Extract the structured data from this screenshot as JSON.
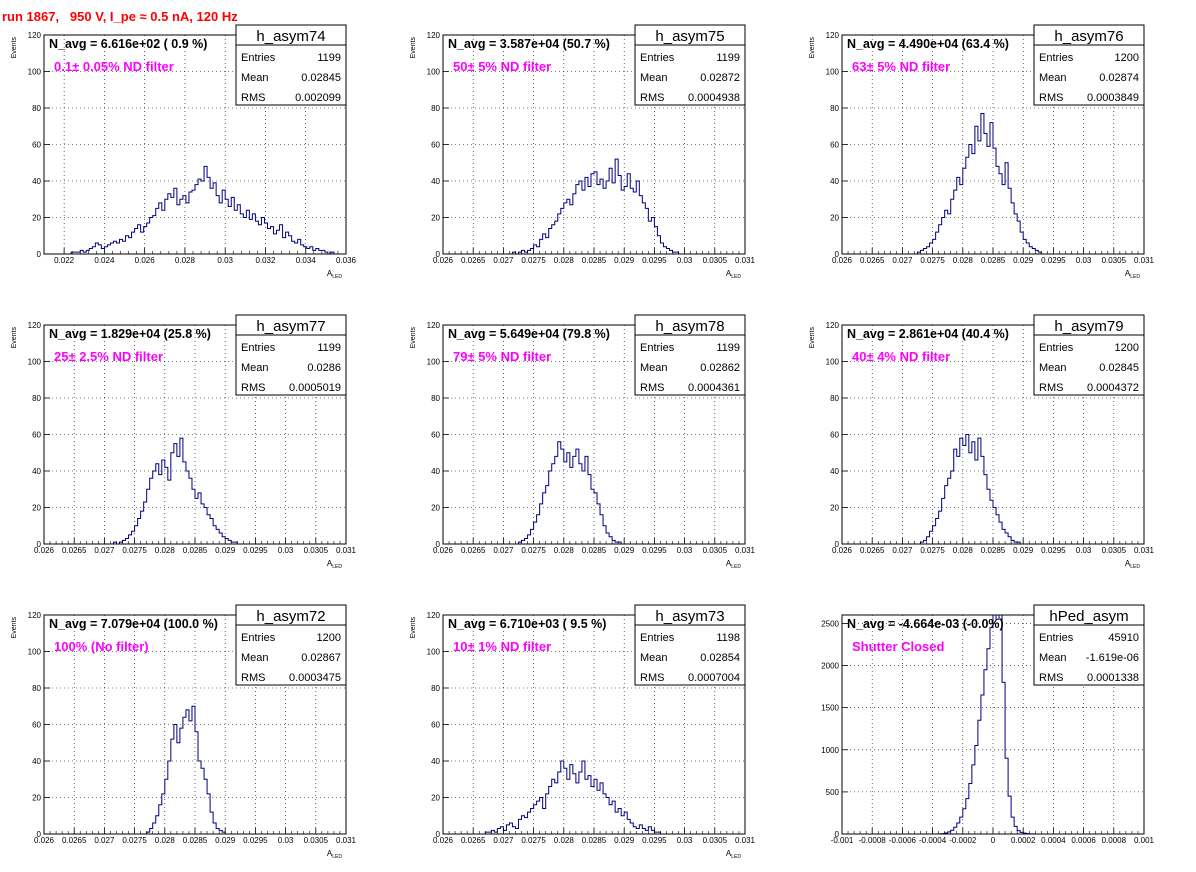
{
  "page": {
    "title": "run 1867,   950 V, I_pe ≈ 0.5 nA, 120 Hz"
  },
  "colors": {
    "histogram": "#000080",
    "annotation": "#ff00ff",
    "title": "#ff0000",
    "grid": "#000000"
  },
  "chart_data": [
    {
      "type": "histogram",
      "name": "h_asym74",
      "stats": {
        "Entries": "1199",
        "Mean": "0.02845",
        "RMS": "0.002099"
      },
      "navg": "N_avg = 6.616e+02 ( 0.9 %)",
      "note": "0.1± 0.05% ND filter",
      "xlabel": "A_LED",
      "ylabel": "Events",
      "xlim": [
        0.021,
        0.036
      ],
      "ylim": [
        0,
        120
      ],
      "xticks": [
        0.022,
        0.024,
        0.026,
        0.028,
        0.03,
        0.032,
        0.034,
        0.036
      ],
      "xtick_labels": [
        "0.022",
        "0.024",
        "0.026",
        "0.028",
        "0.03",
        "0.032",
        "0.034",
        "0.036"
      ],
      "yticks": [
        0,
        20,
        40,
        60,
        80,
        100,
        120
      ],
      "x_start": 0.021,
      "bin_width": 0.00015,
      "counts": [
        0,
        0,
        0,
        0,
        0,
        0,
        0,
        0,
        0,
        1,
        1,
        1,
        2,
        1,
        2,
        3,
        4,
        6,
        5,
        3,
        4,
        5,
        6,
        7,
        6,
        8,
        7,
        10,
        9,
        12,
        14,
        16,
        12,
        15,
        17,
        20,
        21,
        25,
        28,
        24,
        30,
        33,
        31,
        36,
        27,
        30,
        32,
        28,
        34,
        35,
        38,
        41,
        40,
        48,
        42,
        36,
        39,
        32,
        28,
        35,
        30,
        26,
        31,
        24,
        27,
        22,
        20,
        24,
        19,
        22,
        18,
        16,
        20,
        17,
        14,
        15,
        11,
        13,
        16,
        9,
        12,
        10,
        7,
        6,
        8,
        5,
        4,
        3,
        4,
        2,
        3,
        2,
        2,
        1,
        0,
        1,
        0,
        0,
        0,
        0
      ]
    },
    {
      "type": "histogram",
      "name": "h_asym75",
      "stats": {
        "Entries": "1199",
        "Mean": "0.02872",
        "RMS": "0.0004938"
      },
      "navg": "N_avg = 3.587e+04 (50.7 %)",
      "note": "50± 5% ND filter",
      "xlabel": "A_LED",
      "ylabel": "Events",
      "xlim": [
        0.026,
        0.031
      ],
      "ylim": [
        0,
        120
      ],
      "xticks": [
        0.026,
        0.0265,
        0.027,
        0.0275,
        0.028,
        0.0285,
        0.029,
        0.0295,
        0.03,
        0.0305,
        0.031
      ],
      "xtick_labels": [
        "0.026",
        "0.0265",
        "0.027",
        "0.0275",
        "0.028",
        "0.0285",
        "0.029",
        "0.0295",
        "0.03",
        "0.0305",
        "0.031"
      ],
      "yticks": [
        0,
        20,
        40,
        60,
        80,
        100,
        120
      ],
      "x_start": 0.026,
      "bin_width": 5e-05,
      "counts": [
        0,
        0,
        0,
        0,
        0,
        0,
        0,
        0,
        0,
        0,
        0,
        0,
        0,
        0,
        0,
        0,
        0,
        0,
        0,
        0,
        0,
        0,
        0,
        1,
        0,
        1,
        2,
        1,
        2,
        3,
        5,
        4,
        8,
        11,
        9,
        14,
        16,
        18,
        22,
        25,
        28,
        30,
        27,
        33,
        38,
        40,
        35,
        42,
        37,
        44,
        45,
        38,
        41,
        36,
        40,
        47,
        39,
        52,
        43,
        35,
        37,
        44,
        36,
        34,
        40,
        32,
        28,
        25,
        18,
        20,
        15,
        10,
        6,
        4,
        3,
        2,
        1,
        1,
        0,
        0,
        0,
        0,
        0,
        0,
        0,
        0,
        0,
        0,
        0,
        0,
        0,
        0,
        0,
        0,
        0,
        0,
        0,
        0,
        0,
        0
      ]
    },
    {
      "type": "histogram",
      "name": "h_asym76",
      "stats": {
        "Entries": "1200",
        "Mean": "0.02874",
        "RMS": "0.0003849"
      },
      "navg": "N_avg = 4.490e+04 (63.4 %)",
      "note": "63± 5% ND filter",
      "xlabel": "A_LED",
      "ylabel": "Events",
      "xlim": [
        0.026,
        0.031
      ],
      "ylim": [
        0,
        120
      ],
      "xticks": [
        0.026,
        0.0265,
        0.027,
        0.0275,
        0.028,
        0.0285,
        0.029,
        0.0295,
        0.03,
        0.0305,
        0.031
      ],
      "xtick_labels": [
        "0.026",
        "0.0265",
        "0.027",
        "0.0275",
        "0.028",
        "0.0285",
        "0.029",
        "0.0295",
        "0.03",
        "0.0305",
        "0.031"
      ],
      "yticks": [
        0,
        20,
        40,
        60,
        80,
        100,
        120
      ],
      "x_start": 0.026,
      "bin_width": 5e-05,
      "counts": [
        0,
        0,
        0,
        0,
        0,
        0,
        0,
        0,
        0,
        0,
        0,
        0,
        0,
        0,
        0,
        0,
        0,
        0,
        0,
        0,
        0,
        0,
        0,
        0,
        0,
        1,
        2,
        3,
        4,
        6,
        8,
        12,
        16,
        20,
        24,
        22,
        30,
        35,
        42,
        38,
        47,
        53,
        60,
        55,
        70,
        62,
        77,
        66,
        59,
        72,
        58,
        48,
        44,
        38,
        50,
        36,
        28,
        22,
        18,
        12,
        8,
        6,
        4,
        3,
        2,
        1,
        0,
        0,
        0,
        0,
        0,
        0,
        0,
        0,
        0,
        0,
        0,
        0,
        0,
        0,
        0,
        0,
        0,
        0,
        0,
        0,
        0,
        0,
        0,
        0,
        0,
        0,
        0,
        0,
        0,
        0,
        0,
        0,
        0,
        0
      ]
    },
    {
      "type": "histogram",
      "name": "h_asym77",
      "stats": {
        "Entries": "1199",
        "Mean": "0.0286",
        "RMS": "0.0005019"
      },
      "navg": "N_avg = 1.829e+04 (25.8 %)",
      "note": "25± 2.5% ND filter",
      "xlabel": "A_LED",
      "ylabel": "Events",
      "xlim": [
        0.026,
        0.031
      ],
      "ylim": [
        0,
        120
      ],
      "xticks": [
        0.026,
        0.0265,
        0.027,
        0.0275,
        0.028,
        0.0285,
        0.029,
        0.0295,
        0.03,
        0.0305,
        0.031
      ],
      "xtick_labels": [
        "0.026",
        "0.0265",
        "0.027",
        "0.0275",
        "0.028",
        "0.0285",
        "0.029",
        "0.0295",
        "0.03",
        "0.0305",
        "0.031"
      ],
      "yticks": [
        0,
        20,
        40,
        60,
        80,
        100,
        120
      ],
      "x_start": 0.026,
      "bin_width": 5e-05,
      "counts": [
        0,
        0,
        0,
        0,
        0,
        0,
        0,
        0,
        0,
        0,
        0,
        0,
        0,
        0,
        0,
        0,
        0,
        0,
        0,
        0,
        0,
        0,
        0,
        1,
        0,
        1,
        2,
        3,
        5,
        7,
        10,
        14,
        18,
        23,
        30,
        36,
        40,
        44,
        38,
        46,
        42,
        35,
        50,
        55,
        48,
        58,
        45,
        40,
        36,
        30,
        25,
        28,
        22,
        20,
        16,
        14,
        10,
        8,
        6,
        4,
        3,
        2,
        1,
        1,
        0,
        0,
        0,
        0,
        0,
        0,
        0,
        0,
        0,
        0,
        0,
        0,
        0,
        0,
        0,
        0,
        0,
        0,
        0,
        0,
        0,
        0,
        0,
        0,
        0,
        0,
        0,
        0,
        0,
        0,
        0,
        0,
        0,
        0,
        0,
        0
      ]
    },
    {
      "type": "histogram",
      "name": "h_asym78",
      "stats": {
        "Entries": "1199",
        "Mean": "0.02862",
        "RMS": "0.0004361"
      },
      "navg": "N_avg = 5.649e+04 (79.8 %)",
      "note": "79± 5% ND filter",
      "xlabel": "A_LED",
      "ylabel": "Events",
      "xlim": [
        0.026,
        0.031
      ],
      "ylim": [
        0,
        120
      ],
      "xticks": [
        0.026,
        0.0265,
        0.027,
        0.0275,
        0.028,
        0.0285,
        0.029,
        0.0295,
        0.03,
        0.0305,
        0.031
      ],
      "xtick_labels": [
        "0.026",
        "0.0265",
        "0.027",
        "0.0275",
        "0.028",
        "0.0285",
        "0.029",
        "0.0295",
        "0.03",
        "0.0305",
        "0.031"
      ],
      "yticks": [
        0,
        20,
        40,
        60,
        80,
        100,
        120
      ],
      "x_start": 0.026,
      "bin_width": 5e-05,
      "counts": [
        0,
        0,
        0,
        0,
        0,
        0,
        0,
        0,
        0,
        0,
        0,
        0,
        0,
        0,
        0,
        0,
        0,
        0,
        0,
        0,
        0,
        0,
        0,
        0,
        0,
        1,
        2,
        3,
        5,
        8,
        12,
        16,
        22,
        28,
        32,
        40,
        44,
        48,
        56,
        52,
        45,
        50,
        42,
        48,
        52,
        44,
        40,
        48,
        38,
        30,
        28,
        22,
        16,
        10,
        6,
        4,
        2,
        1,
        1,
        0,
        0,
        0,
        0,
        0,
        0,
        0,
        0,
        0,
        0,
        0,
        0,
        0,
        0,
        0,
        0,
        0,
        0,
        0,
        0,
        0,
        0,
        0,
        0,
        0,
        0,
        0,
        0,
        0,
        0,
        0,
        0,
        0,
        0,
        0,
        0,
        0,
        0,
        0,
        0,
        0
      ]
    },
    {
      "type": "histogram",
      "name": "h_asym79",
      "stats": {
        "Entries": "1200",
        "Mean": "0.02845",
        "RMS": "0.0004372"
      },
      "navg": "N_avg = 2.861e+04 (40.4 %)",
      "note": "40± 4% ND filter",
      "xlabel": "A_LED",
      "ylabel": "Events",
      "xlim": [
        0.026,
        0.031
      ],
      "ylim": [
        0,
        120
      ],
      "xticks": [
        0.026,
        0.0265,
        0.027,
        0.0275,
        0.028,
        0.0285,
        0.029,
        0.0295,
        0.03,
        0.0305,
        0.031
      ],
      "xtick_labels": [
        "0.026",
        "0.0265",
        "0.027",
        "0.0275",
        "0.028",
        "0.0285",
        "0.029",
        "0.0295",
        "0.03",
        "0.0305",
        "0.031"
      ],
      "yticks": [
        0,
        20,
        40,
        60,
        80,
        100,
        120
      ],
      "x_start": 0.026,
      "bin_width": 5e-05,
      "counts": [
        0,
        0,
        0,
        0,
        0,
        0,
        0,
        0,
        0,
        0,
        0,
        0,
        0,
        0,
        0,
        0,
        0,
        0,
        0,
        0,
        0,
        0,
        0,
        0,
        0,
        0,
        1,
        2,
        4,
        7,
        10,
        14,
        18,
        25,
        32,
        36,
        40,
        52,
        48,
        58,
        54,
        60,
        50,
        56,
        46,
        58,
        48,
        38,
        30,
        24,
        20,
        16,
        12,
        8,
        6,
        4,
        2,
        1,
        1,
        0,
        0,
        0,
        0,
        0,
        0,
        0,
        0,
        0,
        0,
        0,
        0,
        0,
        0,
        0,
        0,
        0,
        0,
        0,
        0,
        0,
        0,
        0,
        0,
        0,
        0,
        0,
        0,
        0,
        0,
        0,
        0,
        0,
        0,
        0,
        0,
        0,
        0,
        0,
        0,
        0
      ]
    },
    {
      "type": "histogram",
      "name": "h_asym72",
      "stats": {
        "Entries": "1200",
        "Mean": "0.02867",
        "RMS": "0.0003475"
      },
      "navg": "N_avg = 7.079e+04 (100.0 %)",
      "note": "100% (No filter)",
      "xlabel": "A_LED",
      "ylabel": "Events",
      "xlim": [
        0.026,
        0.031
      ],
      "ylim": [
        0,
        120
      ],
      "xticks": [
        0.026,
        0.0265,
        0.027,
        0.0275,
        0.028,
        0.0285,
        0.029,
        0.0295,
        0.03,
        0.0305,
        0.031
      ],
      "xtick_labels": [
        "0.026",
        "0.0265",
        "0.027",
        "0.0275",
        "0.028",
        "0.0285",
        "0.029",
        "0.0295",
        "0.03",
        "0.0305",
        "0.031"
      ],
      "yticks": [
        0,
        20,
        40,
        60,
        80,
        100,
        120
      ],
      "x_start": 0.026,
      "bin_width": 5e-05,
      "counts": [
        0,
        0,
        0,
        0,
        0,
        0,
        0,
        0,
        0,
        0,
        0,
        0,
        0,
        0,
        0,
        0,
        0,
        0,
        0,
        0,
        0,
        0,
        0,
        0,
        0,
        0,
        0,
        0,
        0,
        0,
        0,
        0,
        0,
        0,
        1,
        3,
        6,
        10,
        16,
        22,
        30,
        40,
        52,
        60,
        50,
        58,
        64,
        68,
        62,
        70,
        56,
        40,
        36,
        30,
        22,
        12,
        6,
        3,
        2,
        1,
        0,
        0,
        0,
        0,
        0,
        0,
        0,
        0,
        0,
        0,
        0,
        0,
        0,
        0,
        0,
        0,
        0,
        0,
        0,
        0,
        0,
        0,
        0,
        0,
        0,
        0,
        0,
        0,
        0,
        0,
        0,
        0,
        0,
        0,
        0,
        0,
        0,
        0,
        0,
        0
      ]
    },
    {
      "type": "histogram",
      "name": "h_asym73",
      "stats": {
        "Entries": "1198",
        "Mean": "0.02854",
        "RMS": "0.0007004"
      },
      "navg": "N_avg = 6.710e+03 ( 9.5 %)",
      "note": "10± 1% ND filter",
      "xlabel": "A_LED",
      "ylabel": "Events",
      "xlim": [
        0.026,
        0.031
      ],
      "ylim": [
        0,
        120
      ],
      "xticks": [
        0.026,
        0.0265,
        0.027,
        0.0275,
        0.028,
        0.0285,
        0.029,
        0.0295,
        0.03,
        0.0305,
        0.031
      ],
      "xtick_labels": [
        "0.026",
        "0.0265",
        "0.027",
        "0.0275",
        "0.028",
        "0.0285",
        "0.029",
        "0.0295",
        "0.03",
        "0.0305",
        "0.031"
      ],
      "yticks": [
        0,
        20,
        40,
        60,
        80,
        100,
        120
      ],
      "x_start": 0.026,
      "bin_width": 5e-05,
      "counts": [
        0,
        0,
        0,
        0,
        0,
        0,
        0,
        0,
        0,
        0,
        0,
        0,
        0,
        0,
        1,
        1,
        2,
        1,
        3,
        4,
        2,
        5,
        6,
        4,
        3,
        8,
        10,
        9,
        12,
        14,
        16,
        18,
        20,
        14,
        22,
        26,
        30,
        28,
        34,
        40,
        36,
        30,
        38,
        33,
        28,
        34,
        40,
        30,
        32,
        26,
        30,
        24,
        28,
        22,
        20,
        16,
        18,
        12,
        14,
        10,
        12,
        8,
        6,
        4,
        3,
        5,
        3,
        2,
        4,
        2,
        1,
        1,
        0,
        0,
        0,
        0,
        0,
        0,
        0,
        0,
        0,
        0,
        0,
        0,
        0,
        0,
        0,
        0,
        0,
        0,
        0,
        0,
        0,
        0,
        0,
        0,
        0,
        0,
        0,
        0
      ]
    },
    {
      "type": "histogram",
      "name": "hPed_asym",
      "stats": {
        "Entries": "45910",
        "Mean": "-1.619e-06",
        "RMS": "0.0001338"
      },
      "navg": "N_avg = -4.664e-03 (-0.0%)",
      "note": "Shutter Closed",
      "xlabel": "",
      "ylabel": "",
      "xlim": [
        -0.001,
        0.001
      ],
      "ylim": [
        0,
        2600
      ],
      "xticks": [
        -0.001,
        -0.0008,
        -0.0006,
        -0.0004,
        -0.0002,
        0,
        0.0002,
        0.0004,
        0.0006,
        0.0008,
        0.001
      ],
      "xtick_labels": [
        "-0.001",
        "-0.0008",
        "-0.0006",
        "-0.0004",
        "-0.0002",
        "0",
        "0.0002",
        "0.0004",
        "0.0006",
        "0.0008",
        "0.001"
      ],
      "yticks": [
        0,
        500,
        1000,
        1500,
        2000,
        2500
      ],
      "x_start": -0.001,
      "bin_width": 2e-05,
      "counts": [
        0,
        0,
        0,
        0,
        0,
        0,
        0,
        0,
        0,
        0,
        0,
        0,
        0,
        0,
        0,
        0,
        0,
        0,
        0,
        0,
        0,
        0,
        0,
        0,
        0,
        0,
        0,
        0,
        0,
        0,
        0,
        0,
        2,
        5,
        12,
        25,
        45,
        80,
        130,
        200,
        300,
        420,
        600,
        820,
        1050,
        1350,
        1650,
        1950,
        2200,
        2450,
        2600,
        2550,
        2650,
        1800,
        900,
        450,
        200,
        90,
        40,
        20,
        10,
        4,
        2,
        1,
        0,
        0,
        0,
        0,
        0,
        0,
        0,
        0,
        0,
        0,
        0,
        0,
        0,
        0,
        0,
        0,
        0,
        0,
        0,
        0,
        0,
        0,
        0,
        0,
        0,
        0,
        0,
        0,
        0,
        0,
        0,
        0,
        0,
        0,
        0,
        0,
        0
      ]
    }
  ]
}
